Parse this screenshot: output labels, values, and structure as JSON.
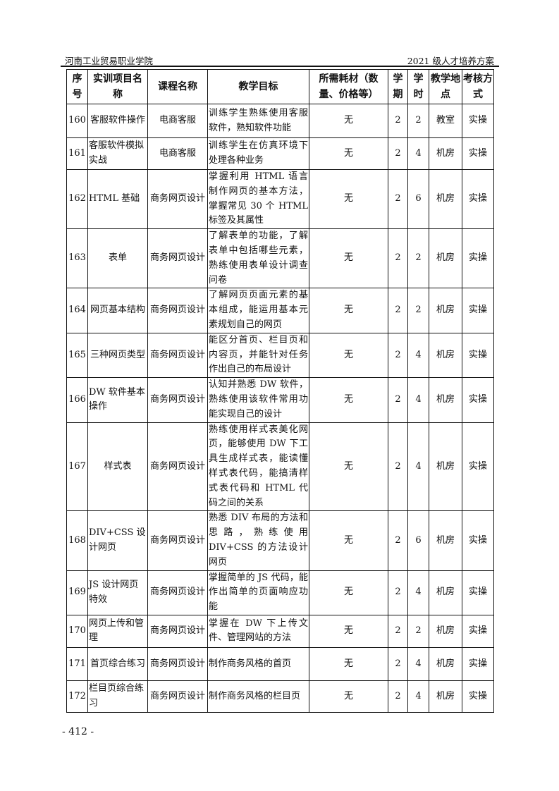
{
  "header": {
    "left": "河南工业贸易职业学院",
    "right": "2021 级人才培养方案"
  },
  "columns": [
    "序号",
    "实训项目名称",
    "课程名称",
    "教学目标",
    "所需耗材（数量、价格等）",
    "学期",
    "学时",
    "教学地点",
    "考核方式"
  ],
  "rows": [
    [
      "160",
      "客服软件操作",
      "电商客服",
      "训练学生熟练使用客服软件，熟知软件功能",
      "无",
      "2",
      "2",
      "教室",
      "实操"
    ],
    [
      "161",
      "客服软件模拟实战",
      "电商客服",
      "训练学生在仿真环境下处理各种业务",
      "无",
      "2",
      "4",
      "机房",
      "实操"
    ],
    [
      "162",
      "HTML 基础",
      "商务网页设计",
      "掌握利用 HTML 语言制作网页的基本方法，掌握常见 30 个 HTML 标签及其属性",
      "无",
      "2",
      "6",
      "机房",
      "实操"
    ],
    [
      "163",
      "表单",
      "商务网页设计",
      "了解表单的功能，了解表单中包括哪些元素，熟练使用表单设计调查问卷",
      "无",
      "2",
      "2",
      "机房",
      "实操"
    ],
    [
      "164",
      "网页基本结构",
      "商务网页设计",
      "了解网页页面元素的基本组成，能运用基本元素规划自己的网页",
      "无",
      "2",
      "2",
      "机房",
      "实操"
    ],
    [
      "165",
      "三种网页类型",
      "商务网页设计",
      "能区分首页、栏目页和内容页，并能针对任务作出自己的布局设计",
      "无",
      "2",
      "4",
      "机房",
      "实操"
    ],
    [
      "166",
      "DW 软件基本操作",
      "商务网页设计",
      "认知并熟悉 DW 软件，熟练使用该软件常用功能实现自己的设计",
      "无",
      "2",
      "4",
      "机房",
      "实操"
    ],
    [
      "167",
      "样式表",
      "商务网页设计",
      "熟练使用样式表美化网页，能够使用 DW 下工具生成样式表，能读懂样式表代码，能搞清样式表代码和 HTML 代码之间的关系",
      "无",
      "2",
      "4",
      "机房",
      "实操"
    ],
    [
      "168",
      "DIV+CSS 设计网页",
      "商务网页设计",
      "熟悉 DIV 布局的方法和思路，熟练使用 DIV+CSS 的方法设计网页",
      "无",
      "2",
      "6",
      "机房",
      "实操"
    ],
    [
      "169",
      "JS 设计网页特效",
      "商务网页设计",
      "掌握简单的 JS 代码，能作出简单的页面响应功能",
      "无",
      "2",
      "4",
      "机房",
      "实操"
    ],
    [
      "170",
      "网页上传和管理",
      "商务网页设计",
      "掌握在 DW 下上传文件、管理网站的方法",
      "无",
      "2",
      "2",
      "机房",
      "实操"
    ],
    [
      "171",
      "首页综合练习",
      "商务网页设计",
      "制作商务风格的首页",
      "无",
      "2",
      "4",
      "机房",
      "实操"
    ],
    [
      "172",
      "栏目页综合练习",
      "商务网页设计",
      "制作商务风格的栏目页",
      "无",
      "2",
      "4",
      "机房",
      "实操"
    ]
  ],
  "page_number": "- 412 -"
}
